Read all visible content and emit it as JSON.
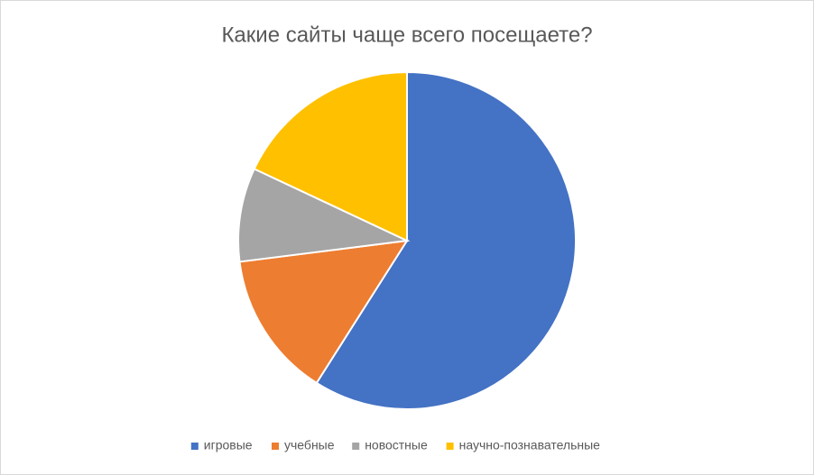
{
  "chart_data": {
    "type": "pie",
    "title": "Какие сайты чаще всего посещаете?",
    "categories": [
      "игровые",
      "учебные",
      "новостные",
      "научно-познавательные"
    ],
    "values": [
      59,
      14,
      9,
      18
    ],
    "colors": [
      "#4472c4",
      "#ed7d31",
      "#a5a5a5",
      "#ffc000"
    ],
    "legend": "bottom"
  }
}
